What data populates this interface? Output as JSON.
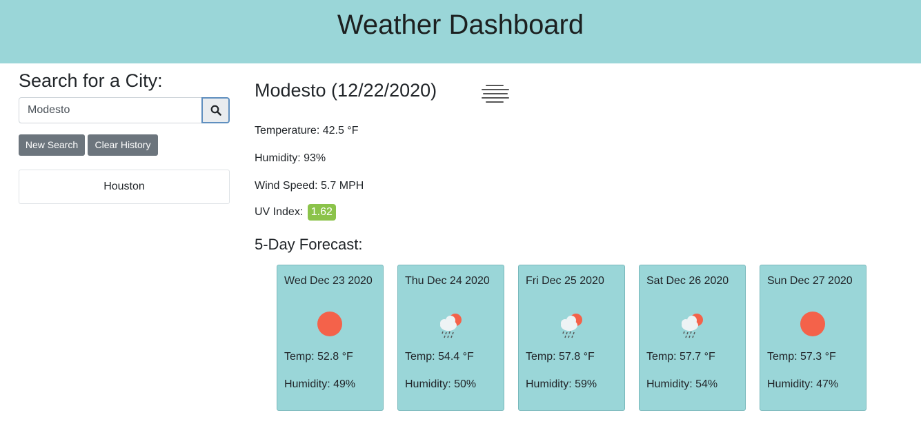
{
  "header": {
    "title": "Weather Dashboard"
  },
  "sidebar": {
    "heading": "Search for a City:",
    "search_value": "Modesto",
    "new_search_label": "New Search",
    "clear_history_label": "Clear History",
    "history": [
      "Houston"
    ]
  },
  "current": {
    "title": "Modesto (12/22/2020)",
    "icon": "fog-icon",
    "temperature": "Temperature: 42.5 °F",
    "humidity": "Humidity: 93%",
    "wind": "Wind Speed: 5.7 MPH",
    "uv_label": "UV Index:",
    "uv_value": "1.62",
    "uv_color": "#8bc34a"
  },
  "forecast": {
    "title": "5-Day Forecast:",
    "days": [
      {
        "date": "Wed Dec 23 2020",
        "icon": "sun-icon",
        "temp": "Temp: 52.8 °F",
        "humidity": "Humidity: 49%"
      },
      {
        "date": "Thu Dec 24 2020",
        "icon": "rain-cloud-sun-icon",
        "temp": "Temp: 54.4 °F",
        "humidity": "Humidity: 50%"
      },
      {
        "date": "Fri Dec 25 2020",
        "icon": "rain-cloud-sun-icon",
        "temp": "Temp: 57.8 °F",
        "humidity": "Humidity: 59%"
      },
      {
        "date": "Sat Dec 26 2020",
        "icon": "rain-cloud-sun-icon",
        "temp": "Temp: 57.7 °F",
        "humidity": "Humidity: 54%"
      },
      {
        "date": "Sun Dec 27 2020",
        "icon": "sun-icon",
        "temp": "Temp: 57.3 °F",
        "humidity": "Humidity: 47%"
      }
    ]
  },
  "colors": {
    "header_bg": "#9ad6d8",
    "card_bg": "#9ad6d8",
    "button_bg": "#6c757d",
    "sun": "#f4624a"
  }
}
